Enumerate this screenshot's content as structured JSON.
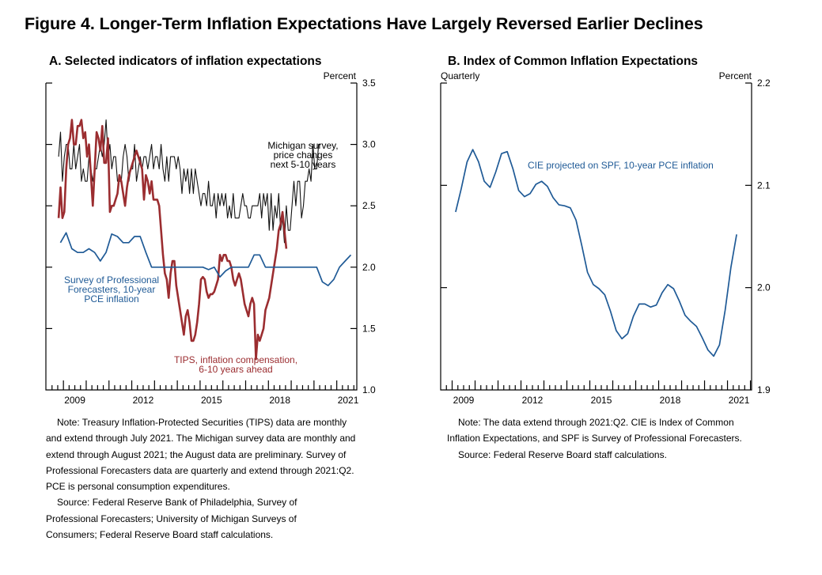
{
  "figure_title": "Figure 4. Longer-Term Inflation Expectations Have Largely Reversed Earlier Declines",
  "colors": {
    "tips": "#9b2d30",
    "michigan": "#111111",
    "spf": "#1f5a96",
    "cie": "#1f5a96"
  },
  "chart_data": [
    {
      "type": "line",
      "title": "A. Selected indicators of inflation expectations",
      "ylabel": "Percent",
      "xlabel": "",
      "ylim": [
        1.0,
        3.5
      ],
      "yticks": [
        "1.0",
        "1.5",
        "2.0",
        "2.5",
        "3.0",
        "3.5"
      ],
      "xticks": [
        "2009",
        "2012",
        "2015",
        "2018",
        "2021"
      ],
      "frequency_note": "",
      "series": [
        {
          "name": "Michigan survey, price changes next 5-10 years",
          "key": "michigan",
          "start": 2008.79,
          "step": 0.0833,
          "values": [
            2.9,
            3.1,
            2.7,
            2.9,
            3.0,
            3.0,
            2.8,
            2.8,
            3.0,
            2.8,
            2.9,
            3.0,
            2.7,
            2.8,
            2.7,
            2.7,
            2.9,
            2.8,
            2.7,
            2.8,
            2.8,
            2.9,
            3.0,
            2.9,
            3.0,
            3.2,
            2.9,
            3.0,
            2.8,
            2.9,
            2.9,
            2.7,
            2.7,
            2.7,
            2.9,
            3.0,
            2.9,
            2.7,
            2.8,
            2.8,
            3.0,
            2.7,
            2.8,
            2.9,
            2.8,
            2.9,
            2.9,
            2.8,
            2.9,
            3.0,
            2.8,
            2.9,
            2.9,
            2.8,
            3.0,
            2.8,
            2.7,
            2.9,
            2.7,
            2.9,
            2.9,
            2.9,
            2.8,
            2.9,
            2.8,
            2.6,
            2.8,
            2.7,
            2.8,
            2.6,
            2.8,
            2.6,
            2.8,
            2.7,
            2.6,
            2.5,
            2.6,
            2.6,
            2.5,
            2.7,
            2.5,
            2.5,
            2.6,
            2.4,
            2.6,
            2.5,
            2.6,
            2.5,
            2.6,
            2.4,
            2.5,
            2.4,
            2.6,
            2.4,
            2.4,
            2.4,
            2.5,
            2.6,
            2.5,
            2.5,
            2.4,
            2.4,
            2.5,
            2.5,
            2.5,
            2.5,
            2.6,
            2.4,
            2.6,
            2.5,
            2.6,
            2.3,
            2.6,
            2.3,
            2.5,
            2.4,
            2.6,
            2.3,
            2.4,
            2.2,
            2.5,
            2.3,
            2.3,
            2.5,
            2.7,
            2.5,
            2.7,
            2.7,
            2.4,
            2.5,
            2.7,
            2.7,
            2.8,
            2.7,
            3.0,
            2.8,
            2.8,
            3.0,
            3.0
          ]
        },
        {
          "name": "TIPS, inflation compensation, 6-10 years ahead",
          "key": "tips",
          "start": 2008.79,
          "step": 0.0833,
          "values": [
            2.4,
            2.65,
            2.4,
            2.45,
            2.8,
            3.0,
            3.05,
            3.2,
            3.0,
            3.0,
            3.15,
            3.15,
            3.2,
            3.05,
            3.1,
            2.9,
            3.0,
            2.75,
            2.5,
            2.8,
            3.1,
            3.05,
            2.95,
            3.15,
            2.85,
            2.85,
            3.05,
            2.45,
            2.5,
            2.5,
            2.55,
            2.6,
            2.75,
            2.7,
            2.6,
            2.5,
            2.65,
            2.75,
            2.8,
            2.85,
            2.9,
            2.95,
            2.9,
            2.85,
            2.8,
            2.55,
            2.75,
            2.7,
            2.6,
            2.7,
            2.55,
            2.55,
            2.55,
            2.5,
            2.3,
            2.1,
            1.95,
            1.9,
            1.75,
            1.95,
            2.05,
            2.05,
            1.85,
            1.75,
            1.65,
            1.55,
            1.45,
            1.6,
            1.65,
            1.55,
            1.4,
            1.4,
            1.45,
            1.55,
            1.7,
            1.9,
            1.92,
            1.9,
            1.8,
            1.75,
            1.78,
            1.78,
            1.8,
            1.85,
            1.9,
            2.1,
            2.05,
            2.1,
            2.1,
            2.05,
            2.05,
            2.0,
            1.9,
            1.85,
            1.9,
            1.95,
            1.9,
            1.8,
            1.7,
            1.65,
            1.6,
            1.7,
            1.75,
            1.7,
            1.25,
            1.45,
            1.4,
            1.45,
            1.5,
            1.65,
            1.7,
            1.75,
            1.85,
            1.95,
            2.05,
            2.15,
            2.3,
            2.35,
            2.45,
            2.3,
            2.15
          ]
        },
        {
          "name": "Survey of Professional Forecasters, 10-year PCE inflation",
          "key": "spf",
          "start": 2008.87,
          "step": 0.25,
          "values": [
            2.2,
            2.28,
            2.15,
            2.12,
            2.12,
            2.15,
            2.12,
            2.05,
            2.12,
            2.27,
            2.25,
            2.2,
            2.2,
            2.25,
            2.25,
            2.12,
            2.0,
            2.0,
            2.0,
            2.0,
            2.0,
            2.0,
            2.0,
            2.0,
            2.0,
            2.0,
            1.98,
            2.0,
            1.92,
            1.97,
            2.0,
            2.0,
            2.0,
            2.0,
            2.1,
            2.1,
            2.0,
            2.0,
            2.0,
            2.0,
            2.0,
            2.0,
            2.0,
            2.0,
            2.0,
            2.0,
            1.88,
            1.85,
            1.9,
            2.0,
            2.05,
            2.1
          ]
        }
      ]
    },
    {
      "type": "line",
      "title": "B. Index of Common Inflation Expectations",
      "ylabel": "Percent",
      "frequency_note": "Quarterly",
      "xlabel": "",
      "ylim": [
        1.9,
        2.2
      ],
      "yticks": [
        "1.9",
        "2.0",
        "2.1",
        "2.2"
      ],
      "xticks": [
        "2009",
        "2012",
        "2015",
        "2018",
        "2021"
      ],
      "series": [
        {
          "name": "CIE projected on SPF, 10-year PCE inflation",
          "key": "cie",
          "start": 2009.15,
          "step": 0.25,
          "values": [
            2.074,
            2.097,
            2.123,
            2.135,
            2.123,
            2.104,
            2.098,
            2.113,
            2.131,
            2.133,
            2.116,
            2.095,
            2.089,
            2.092,
            2.101,
            2.104,
            2.099,
            2.088,
            2.081,
            2.08,
            2.078,
            2.066,
            2.041,
            2.015,
            2.003,
            1.999,
            1.993,
            1.977,
            1.958,
            1.95,
            1.955,
            1.972,
            1.984,
            1.984,
            1.981,
            1.983,
            1.995,
            2.003,
            1.999,
            1.987,
            1.973,
            1.967,
            1.962,
            1.951,
            1.939,
            1.933,
            1.944,
            1.978,
            2.02,
            2.052
          ]
        }
      ]
    }
  ],
  "panel_a": {
    "title": "A. Selected indicators of inflation expectations",
    "unit": "Percent",
    "labels": {
      "michigan": [
        "Michigan survey,",
        "price changes",
        "next 5-10 years"
      ],
      "spf": [
        "Survey of Professional",
        "Forecasters, 10-year",
        "PCE inflation"
      ],
      "tips": [
        "TIPS, inflation compensation,",
        "6-10 years ahead"
      ]
    },
    "note": "Note:  Treasury Inflation-Protected Securities (TIPS) data are monthly and extend through July 2021. The Michigan survey data are monthly and extend through August 2021; the August data are preliminary. Survey of Professional Forecasters data are quarterly and extend through 2021:Q2. PCE is personal consumption expenditures.",
    "note_lines": [
      "Note:  Treasury Inflation-Protected Securities (TIPS) data are monthly",
      "and extend through July 2021. The Michigan survey data are monthly and",
      "extend through August 2021; the August data are preliminary. Survey of",
      "Professional Forecasters data are quarterly and extend through 2021:Q2.",
      "PCE is personal consumption expenditures."
    ],
    "source_lines": [
      "Source:  Federal Reserve Bank of Philadelphia, Survey of",
      "Professional Forecasters; University of Michigan Surveys of",
      "Consumers; Federal Reserve Board staff calculations."
    ]
  },
  "panel_b": {
    "title": "B. Index of Common Inflation Expectations",
    "frequency": "Quarterly",
    "unit": "Percent",
    "labels": {
      "cie": "CIE projected on SPF, 10-year PCE inflation"
    },
    "note_lines": [
      "Note:  The data extend through 2021:Q2. CIE is Index of Common",
      "Inflation Expectations, and SPF is Survey of Professional Forecasters."
    ],
    "source_lines": [
      "Source:  Federal Reserve Board staff calculations."
    ]
  }
}
